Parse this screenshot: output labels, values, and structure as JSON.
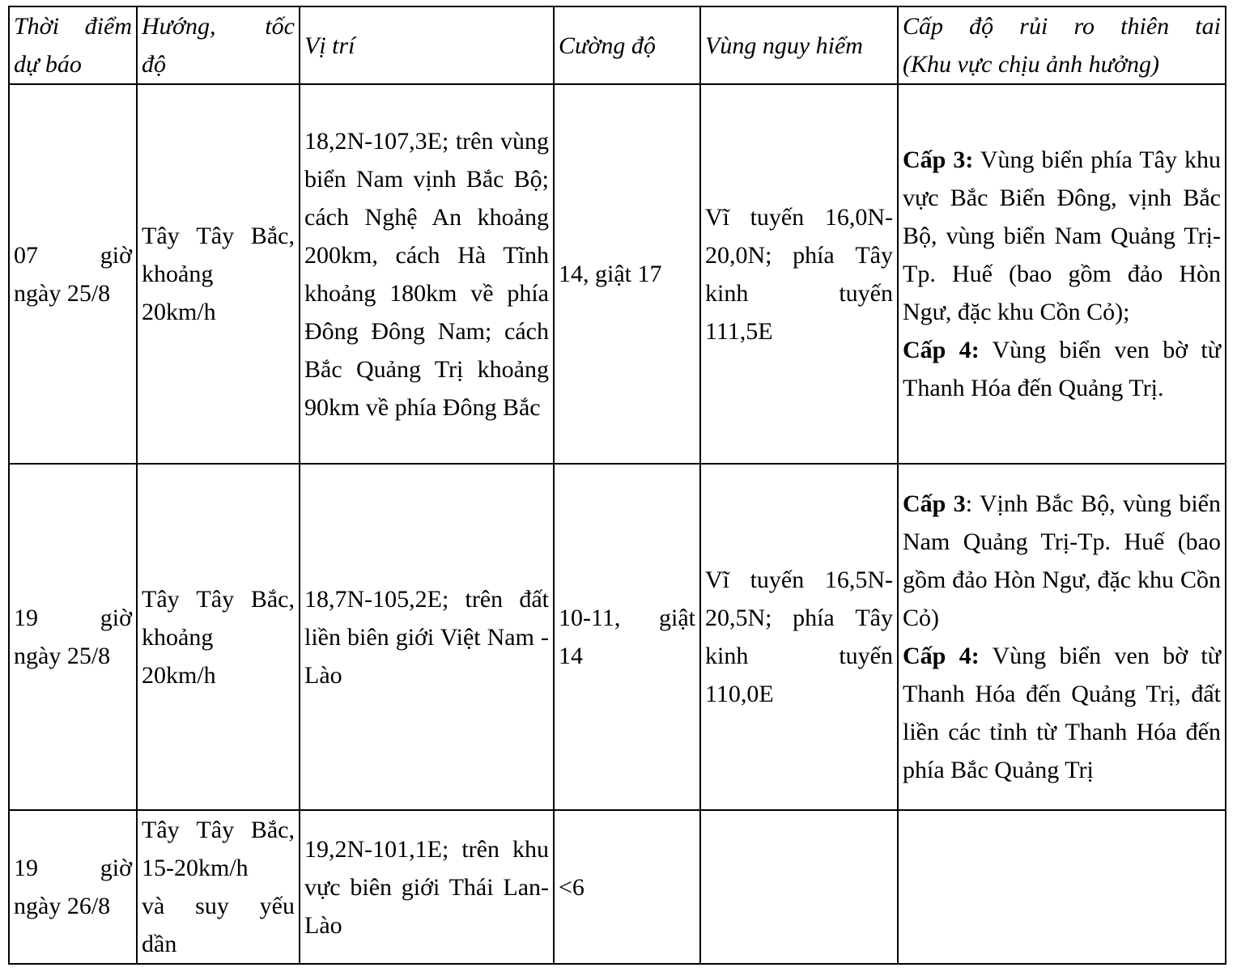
{
  "header": {
    "time": [
      [
        "Thời",
        "điểm"
      ],
      [
        "dự",
        "báo"
      ]
    ],
    "direction": [
      [
        "Hướng,",
        "tốc"
      ],
      [
        "độ"
      ]
    ],
    "position": "Vị trí",
    "intensity": "Cường độ",
    "danger_zone": "Vùng nguy hiểm",
    "risk": [
      [
        "Cấp",
        "độ",
        "rủi",
        "ro",
        "thiên",
        "tai"
      ],
      [
        "(Khu",
        "vực",
        "chịu",
        "ảnh",
        "hưởng)"
      ]
    ]
  },
  "rows": [
    {
      "time": [
        [
          "07",
          "giờ"
        ],
        [
          "ngày",
          "25/8"
        ]
      ],
      "direction": [
        [
          "Tây",
          "Tây",
          "Bắc,"
        ],
        [
          "khoảng"
        ],
        [
          "20km/h"
        ]
      ],
      "position": "18,2N-107,3E; trên vùng biển Nam vịnh Bắc Bộ; cách Nghệ An khoảng 200km, cách Hà Tĩnh khoảng 180km về phía Đông Đông Nam; cách Bắc Quảng Trị khoảng 90km về phía Đông Bắc",
      "intensity": "14, giật 17",
      "danger_zone": [
        [
          "Vĩ",
          "tuyến",
          "16,0N-"
        ],
        [
          "20,0N;",
          "phía",
          "Tây"
        ],
        [
          "kinh",
          "tuyến"
        ],
        [
          "111,5E"
        ]
      ],
      "risk": [
        {
          "prefix": "Cấp 3:",
          "text": " Vùng biển phía Tây khu vực Bắc Biển Đông, vịnh Bắc Bộ, vùng biển Nam Quảng Trị-Tp. Huế (bao gồm đảo Hòn Ngư, đặc khu Cồn Cỏ);"
        },
        {
          "prefix": "Cấp 4:",
          "text": " Vùng biển ven bờ từ Thanh Hóa đến Quảng Trị."
        }
      ]
    },
    {
      "time": [
        [
          "19",
          "giờ"
        ],
        [
          "ngày",
          "25/8"
        ]
      ],
      "direction": [
        [
          "Tây",
          "Tây",
          "Bắc,"
        ],
        [
          "khoảng"
        ],
        [
          "20km/h"
        ]
      ],
      "position": "18,7N-105,2E; trên đất liền biên giới Việt Nam - Lào",
      "intensity": [
        [
          "10-11,",
          "giật"
        ],
        [
          "14"
        ]
      ],
      "danger_zone": [
        [
          "Vĩ",
          "tuyến",
          "16,5N-"
        ],
        [
          "20,5N;",
          "phía",
          "Tây"
        ],
        [
          "kinh",
          "tuyến"
        ],
        [
          "110,0E"
        ]
      ],
      "risk": [
        {
          "prefix": "Cấp 3",
          "text": ": Vịnh Bắc Bộ, vùng biển Nam Quảng Trị-Tp. Huế (bao gồm đảo Hòn Ngư, đặc khu Cồn Cỏ)"
        },
        {
          "prefix": "Cấp 4:",
          "text": " Vùng biển ven bờ từ Thanh Hóa đến Quảng Trị, đất liền các tỉnh từ Thanh Hóa đến phía Bắc Quảng Trị"
        }
      ]
    },
    {
      "time": [
        [
          "19",
          "giờ"
        ],
        [
          "ngày",
          "26/8"
        ]
      ],
      "direction": [
        [
          "Tây",
          "Tây",
          "Bắc,"
        ],
        [
          "15-20km/h"
        ],
        [
          "và",
          "suy",
          "yếu"
        ],
        [
          "dần"
        ]
      ],
      "position": "19,2N-101,1E; trên khu vực biên giới Thái Lan-Lào",
      "intensity": "<6",
      "danger_zone": "",
      "risk": []
    }
  ]
}
